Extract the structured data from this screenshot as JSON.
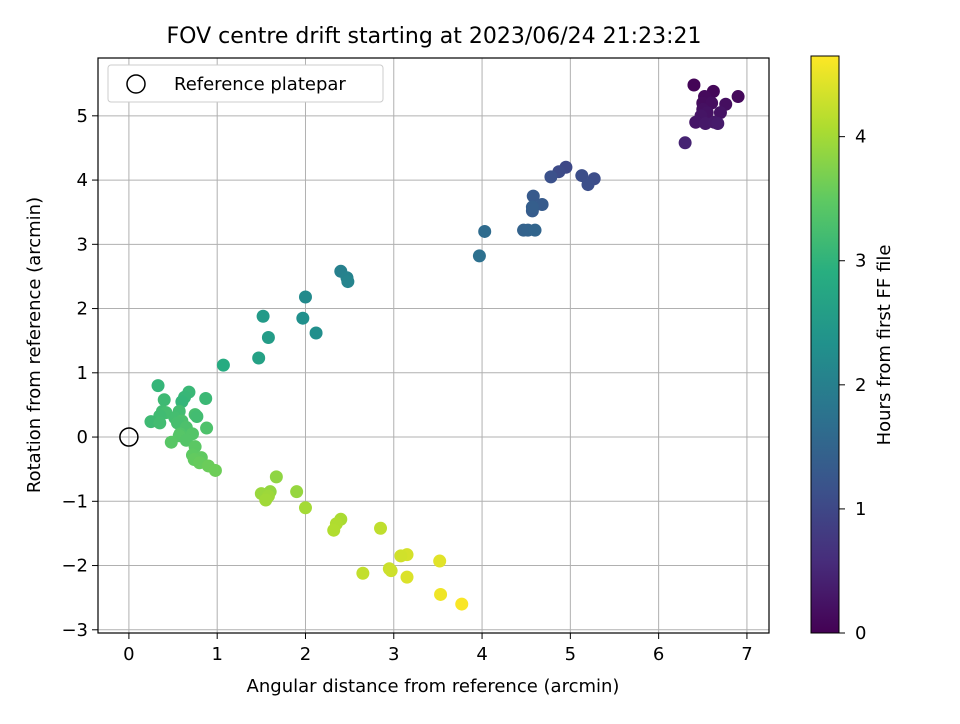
{
  "chart_data": {
    "type": "scatter",
    "title": "FOV centre drift starting at 2023/06/24 21:23:21",
    "xlabel": "Angular distance from reference (arcmin)",
    "ylabel": "Rotation from reference (arcmin)",
    "xlim": [
      -0.35,
      7.25
    ],
    "ylim": [
      -3.05,
      5.9
    ],
    "xticks": [
      0,
      1,
      2,
      3,
      4,
      5,
      6,
      7
    ],
    "yticks": [
      -3,
      -2,
      -1,
      0,
      1,
      2,
      3,
      4,
      5
    ],
    "xtick_labels": [
      "0",
      "1",
      "2",
      "3",
      "4",
      "5",
      "6",
      "7"
    ],
    "ytick_labels": [
      "−3",
      "−2",
      "−1",
      "0",
      "1",
      "2",
      "3",
      "4",
      "5"
    ],
    "grid": true,
    "legend": {
      "position": "top-left",
      "entries": [
        {
          "label": "Reference platepar",
          "marker": "hollow-circle"
        }
      ]
    },
    "reference_point": {
      "x": 0,
      "y": 0
    },
    "colorbar": {
      "label": "Hours from first FF file",
      "colormap": "viridis",
      "range": [
        0,
        4.65
      ],
      "ticks": [
        0,
        1,
        2,
        3,
        4
      ],
      "tick_labels": [
        "0",
        "1",
        "2",
        "3",
        "4"
      ]
    },
    "points": [
      {
        "x": 6.4,
        "y": 5.48,
        "h": 0.05
      },
      {
        "x": 6.62,
        "y": 5.38,
        "h": 0.08
      },
      {
        "x": 6.9,
        "y": 5.3,
        "h": 0.1
      },
      {
        "x": 6.52,
        "y": 5.3,
        "h": 0.12
      },
      {
        "x": 6.5,
        "y": 5.2,
        "h": 0.14
      },
      {
        "x": 6.6,
        "y": 5.2,
        "h": 0.16
      },
      {
        "x": 6.76,
        "y": 5.18,
        "h": 0.18
      },
      {
        "x": 6.5,
        "y": 5.1,
        "h": 0.2
      },
      {
        "x": 6.55,
        "y": 5.05,
        "h": 0.22
      },
      {
        "x": 6.7,
        "y": 5.05,
        "h": 0.24
      },
      {
        "x": 6.48,
        "y": 5.0,
        "h": 0.26
      },
      {
        "x": 6.42,
        "y": 4.9,
        "h": 0.28
      },
      {
        "x": 6.53,
        "y": 4.88,
        "h": 0.3
      },
      {
        "x": 6.63,
        "y": 4.9,
        "h": 0.32
      },
      {
        "x": 6.67,
        "y": 4.88,
        "h": 0.34
      },
      {
        "x": 6.3,
        "y": 4.58,
        "h": 0.45
      },
      {
        "x": 4.95,
        "y": 4.2,
        "h": 1.0
      },
      {
        "x": 4.87,
        "y": 4.13,
        "h": 1.05
      },
      {
        "x": 5.27,
        "y": 4.02,
        "h": 1.08
      },
      {
        "x": 5.13,
        "y": 4.07,
        "h": 1.1
      },
      {
        "x": 4.78,
        "y": 4.05,
        "h": 1.15
      },
      {
        "x": 5.2,
        "y": 3.93,
        "h": 1.12
      },
      {
        "x": 4.58,
        "y": 3.75,
        "h": 1.3
      },
      {
        "x": 4.68,
        "y": 3.62,
        "h": 1.32
      },
      {
        "x": 4.57,
        "y": 3.52,
        "h": 1.35
      },
      {
        "x": 4.57,
        "y": 3.58,
        "h": 1.38
      },
      {
        "x": 4.47,
        "y": 3.22,
        "h": 1.45
      },
      {
        "x": 4.52,
        "y": 3.22,
        "h": 1.48
      },
      {
        "x": 4.6,
        "y": 3.22,
        "h": 1.5
      },
      {
        "x": 4.03,
        "y": 3.2,
        "h": 1.62
      },
      {
        "x": 3.97,
        "y": 2.82,
        "h": 1.7
      },
      {
        "x": 2.4,
        "y": 2.58,
        "h": 2.0
      },
      {
        "x": 2.47,
        "y": 2.48,
        "h": 2.05
      },
      {
        "x": 2.48,
        "y": 2.42,
        "h": 2.08
      },
      {
        "x": 2.0,
        "y": 2.18,
        "h": 2.2
      },
      {
        "x": 1.52,
        "y": 1.88,
        "h": 2.5
      },
      {
        "x": 1.97,
        "y": 1.85,
        "h": 2.3
      },
      {
        "x": 2.12,
        "y": 1.62,
        "h": 2.28
      },
      {
        "x": 1.58,
        "y": 1.55,
        "h": 2.55
      },
      {
        "x": 1.47,
        "y": 1.23,
        "h": 2.65
      },
      {
        "x": 1.07,
        "y": 1.12,
        "h": 2.85
      },
      {
        "x": 0.33,
        "y": 0.8,
        "h": 3.05
      },
      {
        "x": 0.68,
        "y": 0.7,
        "h": 3.1
      },
      {
        "x": 0.63,
        "y": 0.62,
        "h": 3.08
      },
      {
        "x": 0.87,
        "y": 0.6,
        "h": 3.12
      },
      {
        "x": 0.4,
        "y": 0.58,
        "h": 3.15
      },
      {
        "x": 0.6,
        "y": 0.55,
        "h": 3.05
      },
      {
        "x": 0.38,
        "y": 0.4,
        "h": 3.18
      },
      {
        "x": 0.57,
        "y": 0.4,
        "h": 3.2
      },
      {
        "x": 0.42,
        "y": 0.38,
        "h": 3.22
      },
      {
        "x": 0.75,
        "y": 0.35,
        "h": 3.25
      },
      {
        "x": 0.77,
        "y": 0.32,
        "h": 3.2
      },
      {
        "x": 0.35,
        "y": 0.33,
        "h": 3.18
      },
      {
        "x": 0.52,
        "y": 0.3,
        "h": 3.22
      },
      {
        "x": 0.6,
        "y": 0.25,
        "h": 3.28
      },
      {
        "x": 0.25,
        "y": 0.24,
        "h": 3.15
      },
      {
        "x": 0.35,
        "y": 0.22,
        "h": 3.2
      },
      {
        "x": 0.55,
        "y": 0.22,
        "h": 3.25
      },
      {
        "x": 0.65,
        "y": 0.15,
        "h": 3.3
      },
      {
        "x": 0.88,
        "y": 0.14,
        "h": 3.32
      },
      {
        "x": 0.58,
        "y": 0.05,
        "h": 3.35
      },
      {
        "x": 0.72,
        "y": 0.05,
        "h": 3.38
      },
      {
        "x": 0.57,
        "y": 0.02,
        "h": 3.4
      },
      {
        "x": 0.48,
        "y": -0.08,
        "h": 3.42
      },
      {
        "x": 0.65,
        "y": -0.05,
        "h": 3.38
      },
      {
        "x": 0.75,
        "y": -0.15,
        "h": 3.45
      },
      {
        "x": 0.72,
        "y": -0.28,
        "h": 3.48
      },
      {
        "x": 0.82,
        "y": -0.32,
        "h": 3.5
      },
      {
        "x": 0.74,
        "y": -0.35,
        "h": 3.52
      },
      {
        "x": 0.8,
        "y": -0.4,
        "h": 3.55
      },
      {
        "x": 0.9,
        "y": -0.45,
        "h": 3.58
      },
      {
        "x": 0.98,
        "y": -0.52,
        "h": 3.6
      },
      {
        "x": 1.67,
        "y": -0.62,
        "h": 3.85
      },
      {
        "x": 1.9,
        "y": -0.85,
        "h": 3.9
      },
      {
        "x": 1.6,
        "y": -0.85,
        "h": 3.88
      },
      {
        "x": 1.5,
        "y": -0.88,
        "h": 3.92
      },
      {
        "x": 1.58,
        "y": -0.92,
        "h": 3.95
      },
      {
        "x": 1.55,
        "y": -0.98,
        "h": 3.97
      },
      {
        "x": 2.0,
        "y": -1.1,
        "h": 4.0
      },
      {
        "x": 2.4,
        "y": -1.28,
        "h": 4.05
      },
      {
        "x": 2.35,
        "y": -1.35,
        "h": 4.08
      },
      {
        "x": 2.32,
        "y": -1.45,
        "h": 4.1
      },
      {
        "x": 2.85,
        "y": -1.42,
        "h": 4.2
      },
      {
        "x": 3.15,
        "y": -1.83,
        "h": 4.35
      },
      {
        "x": 3.08,
        "y": -1.85,
        "h": 4.32
      },
      {
        "x": 3.52,
        "y": -1.93,
        "h": 4.45
      },
      {
        "x": 2.95,
        "y": -2.05,
        "h": 4.28
      },
      {
        "x": 2.97,
        "y": -2.08,
        "h": 4.3
      },
      {
        "x": 2.65,
        "y": -2.12,
        "h": 4.22
      },
      {
        "x": 3.15,
        "y": -2.18,
        "h": 4.4
      },
      {
        "x": 3.53,
        "y": -2.45,
        "h": 4.55
      },
      {
        "x": 3.77,
        "y": -2.6,
        "h": 4.62
      }
    ]
  }
}
